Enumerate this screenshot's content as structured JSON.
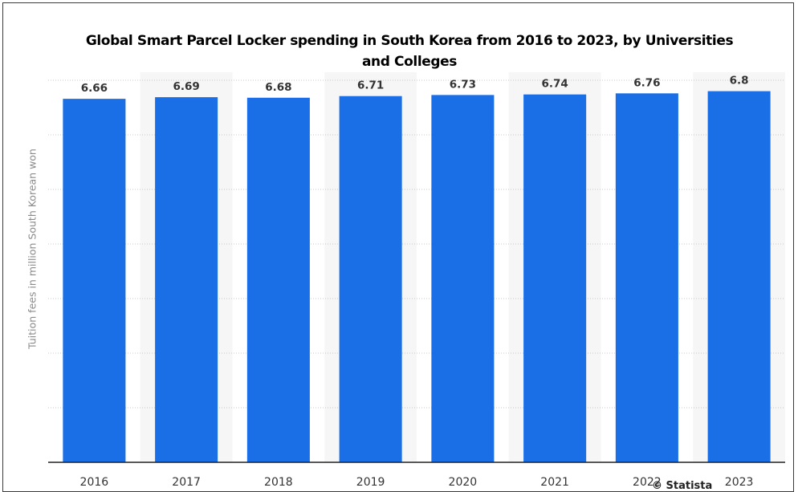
{
  "chart_data": {
    "type": "bar",
    "title": "Global Smart Parcel Locker spending in South Korea from 2016 to 2023, by Universities and Colleges",
    "xlabel": "",
    "ylabel": "Tuition fees in million South Korean won",
    "categories": [
      "2016",
      "2017",
      "2018",
      "2019",
      "2020",
      "2021",
      "2022",
      "2023"
    ],
    "values": [
      6.66,
      6.69,
      6.68,
      6.71,
      6.73,
      6.74,
      6.76,
      6.8
    ],
    "value_labels": [
      "6.66",
      "6.69",
      "6.68",
      "6.71",
      "6.73",
      "6.74",
      "6.76",
      "6.8"
    ],
    "ylim": [
      0,
      7
    ],
    "grid": true,
    "legend": "none",
    "bar_color": "#1a6fe6"
  },
  "footer": {
    "text": "© Statista"
  }
}
